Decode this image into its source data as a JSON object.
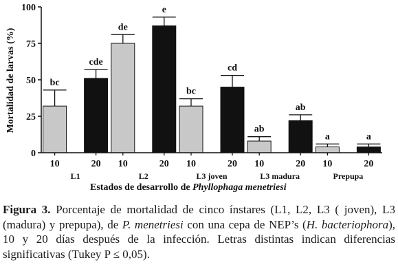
{
  "chart_data": {
    "type": "bar",
    "xlabel_prefix": "Estados de desarrollo de ",
    "xlabel_species": "Phyllophaga menetriesi",
    "ylabel": "Mortalidad de larvas (%)",
    "ylim": [
      0,
      100
    ],
    "yticks": [
      "0",
      "25",
      "50",
      "75",
      "100"
    ],
    "groups": [
      {
        "label": "L1",
        "bars": [
          {
            "day": "10",
            "value": 32,
            "err": 11,
            "letter": "bc",
            "fill": "#c8c8c8"
          },
          {
            "day": "20",
            "value": 51,
            "err": 6,
            "letter": "cde",
            "fill": "#111111"
          }
        ]
      },
      {
        "label": "L2",
        "bars": [
          {
            "day": "10",
            "value": 75,
            "err": 6,
            "letter": "de",
            "fill": "#c8c8c8"
          },
          {
            "day": "20",
            "value": 87,
            "err": 6,
            "letter": "e",
            "fill": "#111111"
          }
        ]
      },
      {
        "label": "L3 joven",
        "bars": [
          {
            "day": "10",
            "value": 32,
            "err": 5,
            "letter": "bc",
            "fill": "#c8c8c8"
          },
          {
            "day": "20",
            "value": 45,
            "err": 8,
            "letter": "cd",
            "fill": "#111111"
          }
        ]
      },
      {
        "label": "L3 madura",
        "bars": [
          {
            "day": "10",
            "value": 8,
            "err": 3,
            "letter": "ab",
            "fill": "#c8c8c8"
          },
          {
            "day": "20",
            "value": 22,
            "err": 4,
            "letter": "ab",
            "fill": "#111111"
          }
        ]
      },
      {
        "label": "Prepupa",
        "bars": [
          {
            "day": "10",
            "value": 4,
            "err": 2,
            "letter": "a",
            "fill": "#c8c8c8"
          },
          {
            "day": "20",
            "value": 4,
            "err": 2,
            "letter": "a",
            "fill": "#111111"
          }
        ]
      }
    ]
  },
  "caption": {
    "label": "Figura 3.",
    "text1": " Porcentaje de mortalidad de cinco ínstares (L1, L2, L3 ( joven), L3 (madura) y prepupa), de ",
    "species": "P. menetriesi",
    "text2": " con una cepa de NEP’s (",
    "nep": "H. bacteriophora",
    "text3": "), 10 y 20 días después de la infección. Letras distintas indican diferencias significativas (Tukey  P ≤ 0,05)."
  }
}
